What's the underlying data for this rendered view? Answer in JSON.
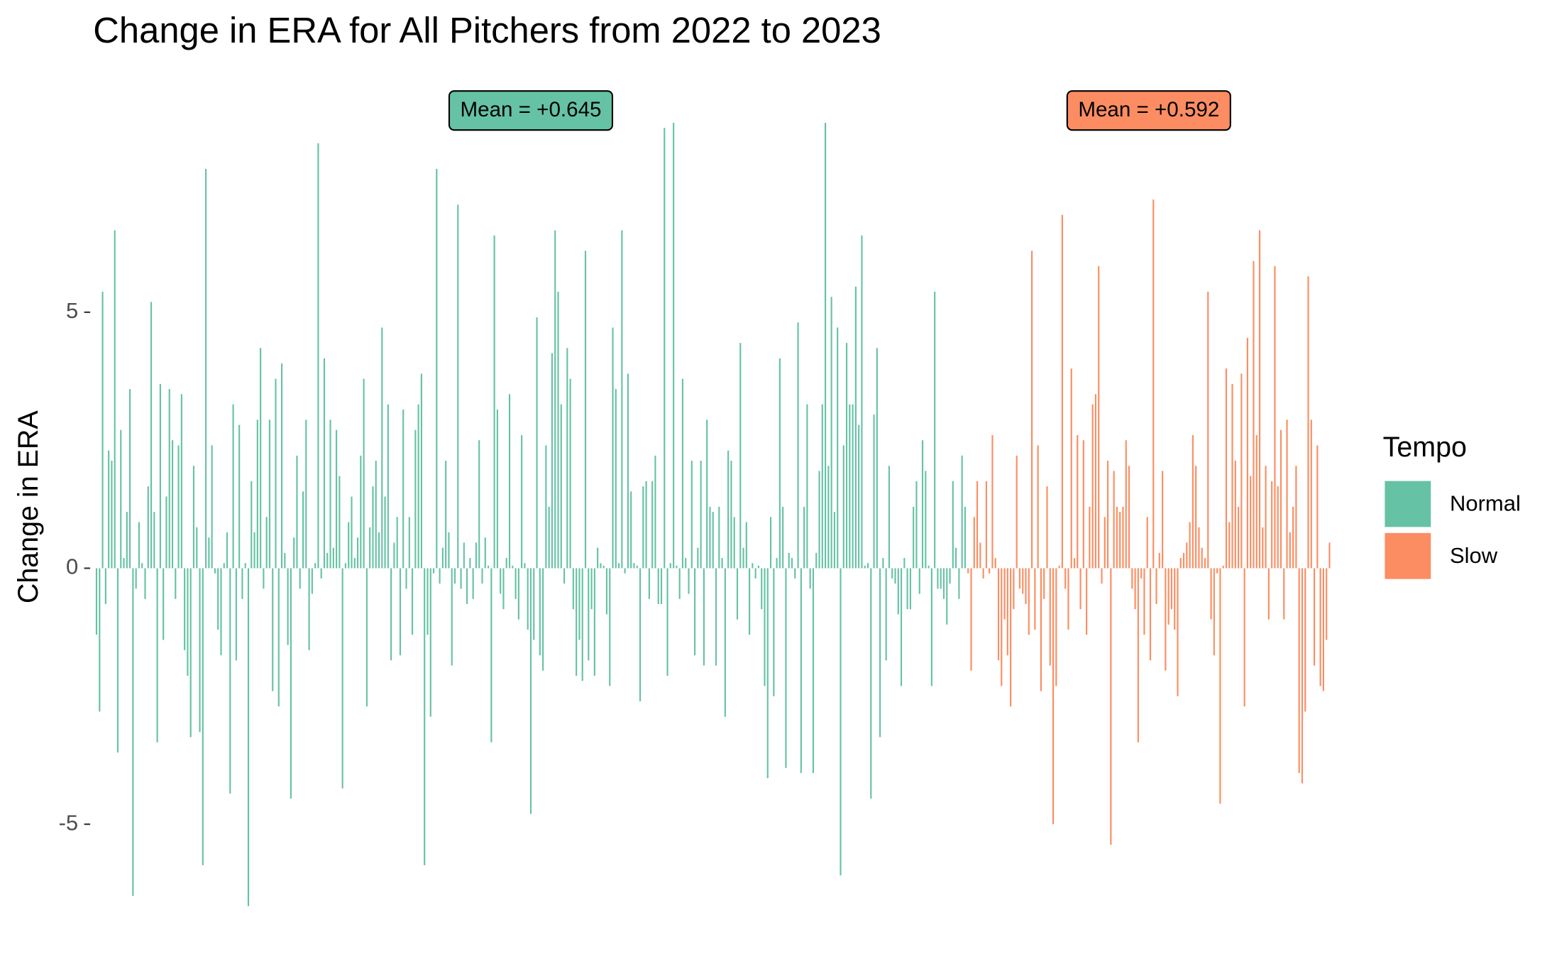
{
  "chart_data": {
    "type": "bar",
    "title": "Change in ERA for All Pitchers from 2022 to 2023",
    "y_label": "Change in ERA",
    "legend_title": "Tempo",
    "legend": "right",
    "ylim": [
      -7.3,
      9.77
    ],
    "yticks": [
      -5,
      0,
      5
    ],
    "series": [
      {
        "name": "Normal",
        "color": "#66c2a5",
        "annotation": "Mean = +0.645",
        "values": [
          -1.3,
          -2.8,
          5.4,
          -0.7,
          2.3,
          2.1,
          6.6,
          -3.6,
          2.7,
          0.2,
          1.1,
          3.5,
          -6.4,
          -0.4,
          0.9,
          0.1,
          -0.6,
          1.6,
          5.2,
          1.1,
          -3.4,
          3.6,
          -1.4,
          1.4,
          3.5,
          2.5,
          -0.6,
          2.4,
          3.4,
          -1.6,
          -2.1,
          -3.3,
          2.0,
          0.8,
          -3.2,
          -5.8,
          7.8,
          0.6,
          2.4,
          -0.1,
          -1.2,
          -1.7,
          0.1,
          0.7,
          -4.4,
          3.2,
          -1.8,
          2.8,
          -0.6,
          0.1,
          -6.6,
          1.7,
          0.7,
          2.9,
          4.3,
          -0.4,
          1.0,
          2.9,
          -2.4,
          3.7,
          -2.7,
          4.0,
          0.3,
          -1.5,
          -4.5,
          0.6,
          2.2,
          -0.4,
          1.5,
          2.9,
          -1.6,
          -0.5,
          0.1,
          8.3,
          -0.2,
          4.1,
          0.3,
          2.9,
          0.4,
          2.7,
          1.8,
          -4.3,
          0.1,
          0.9,
          1.4,
          0.2,
          0.6,
          2.2,
          3.7,
          -2.7,
          0.8,
          1.6,
          2.1,
          0.7,
          4.7,
          1.4,
          3.2,
          -1.8,
          0.5,
          1.0,
          -1.7,
          3.1,
          -0.4,
          1.0,
          -1.3,
          2.7,
          3.2,
          3.8,
          -5.8,
          -1.3,
          -2.9,
          -0.1,
          7.8,
          -0.3,
          0.4,
          2.1,
          0.7,
          -1.9,
          -0.3,
          7.1,
          -0.4,
          0.5,
          -0.7,
          0.2,
          -0.6,
          0.5,
          2.5,
          -0.3,
          0.6,
          0.05,
          -3.4,
          6.5,
          3.1,
          -0.5,
          -0.8,
          0.2,
          3.4,
          0.05,
          -0.6,
          -1.0,
          2.6,
          0.1,
          -1.2,
          -4.8,
          -1.4,
          4.9,
          -1.7,
          -2.0,
          2.4,
          1.2,
          4.2,
          6.6,
          5.4,
          3.2,
          -0.3,
          4.3,
          3.7,
          -0.8,
          -2.1,
          -1.4,
          -2.2,
          6.2,
          -1.8,
          -0.8,
          -2.1,
          0.4,
          0.1,
          0.05,
          -0.9,
          -2.3,
          4.7,
          3.5,
          0.1,
          6.6,
          -0.1,
          3.8,
          1.5,
          0.1,
          0.05,
          -2.6,
          1.6,
          1.7,
          -0.6,
          1.7,
          2.2,
          -0.7,
          -0.7,
          8.6,
          -2.1,
          0.1,
          8.7,
          0.05,
          -0.6,
          3.7,
          0.2,
          -0.5,
          2.1,
          -1.7,
          0.4,
          2.1,
          -1.9,
          2.9,
          1.2,
          1.1,
          -1.9,
          1.2,
          0.2,
          -2.9,
          2.3,
          2.1,
          1.0,
          -1.0,
          4.4,
          0.4,
          0.9,
          -1.3,
          0.1,
          -0.2,
          0.05,
          -0.8,
          -2.3,
          -4.1,
          1.0,
          -2.5,
          0.2,
          4.1,
          1.2,
          -3.9,
          0.3,
          0.2,
          -0.2,
          4.8,
          -4.0,
          1.2,
          3.2,
          -0.4,
          -4.0,
          0.3,
          1.9,
          3.2,
          8.7,
          2.0,
          5.3,
          1.1,
          4.7,
          -6.0,
          2.4,
          4.4,
          3.2,
          3.2,
          5.5,
          2.8,
          6.5,
          0.05,
          0.1,
          -4.5,
          3.0,
          4.3,
          -3.3,
          0.2,
          -1.8,
          2.0,
          -0.2,
          -0.3,
          -0.9,
          -2.3,
          0.2,
          -0.8,
          -0.8,
          1.2,
          1.7,
          -0.5,
          2.5,
          1.9,
          0.05,
          -2.3,
          5.4,
          -0.4,
          -0.4,
          -0.6,
          -1.1,
          -0.3,
          1.7,
          0.4,
          -0.6,
          2.2,
          1.2
        ]
      },
      {
        "name": "Slow",
        "color": "#fc8d62",
        "annotation": "Mean = +0.592",
        "values": [
          -0.1,
          -2.0,
          1.0,
          1.7,
          0.5,
          -0.2,
          1.7,
          -0.1,
          2.6,
          0.2,
          -1.8,
          -2.3,
          -1.0,
          -1.7,
          -2.7,
          -0.8,
          2.2,
          -0.4,
          -0.5,
          -0.7,
          -1.3,
          6.2,
          -1.2,
          2.4,
          -2.4,
          -0.6,
          1.6,
          -1.9,
          -5.0,
          -2.3,
          0.05,
          6.9,
          -0.4,
          -1.2,
          3.9,
          0.2,
          2.6,
          -0.8,
          2.5,
          -1.3,
          1.2,
          3.2,
          3.4,
          5.9,
          -0.3,
          1.0,
          2.1,
          -5.4,
          1.9,
          1.2,
          1.1,
          1.2,
          2.5,
          2.0,
          -0.4,
          -0.8,
          -3.4,
          -0.2,
          -1.3,
          1.0,
          -1.8,
          7.2,
          -0.7,
          0.3,
          1.9,
          -2.0,
          -1.1,
          -0.8,
          -1.2,
          -2.5,
          0.2,
          0.3,
          0.5,
          0.9,
          2.6,
          2.0,
          0.8,
          0.4,
          0.2,
          5.4,
          -1.0,
          -1.7,
          -0.1,
          -4.6,
          0.05,
          3.9,
          0.9,
          3.6,
          2.1,
          1.2,
          3.8,
          -2.7,
          4.5,
          1.8,
          6.0,
          2.6,
          6.6,
          0.8,
          2.0,
          -1.0,
          1.7,
          5.9,
          1.6,
          2.7,
          -1.0,
          2.9,
          0.7,
          1.2,
          2.0,
          -4.0,
          -4.2,
          -2.8,
          5.7,
          2.9,
          -1.9,
          2.4,
          -2.3,
          -2.4,
          -1.4,
          0.5
        ]
      }
    ]
  }
}
